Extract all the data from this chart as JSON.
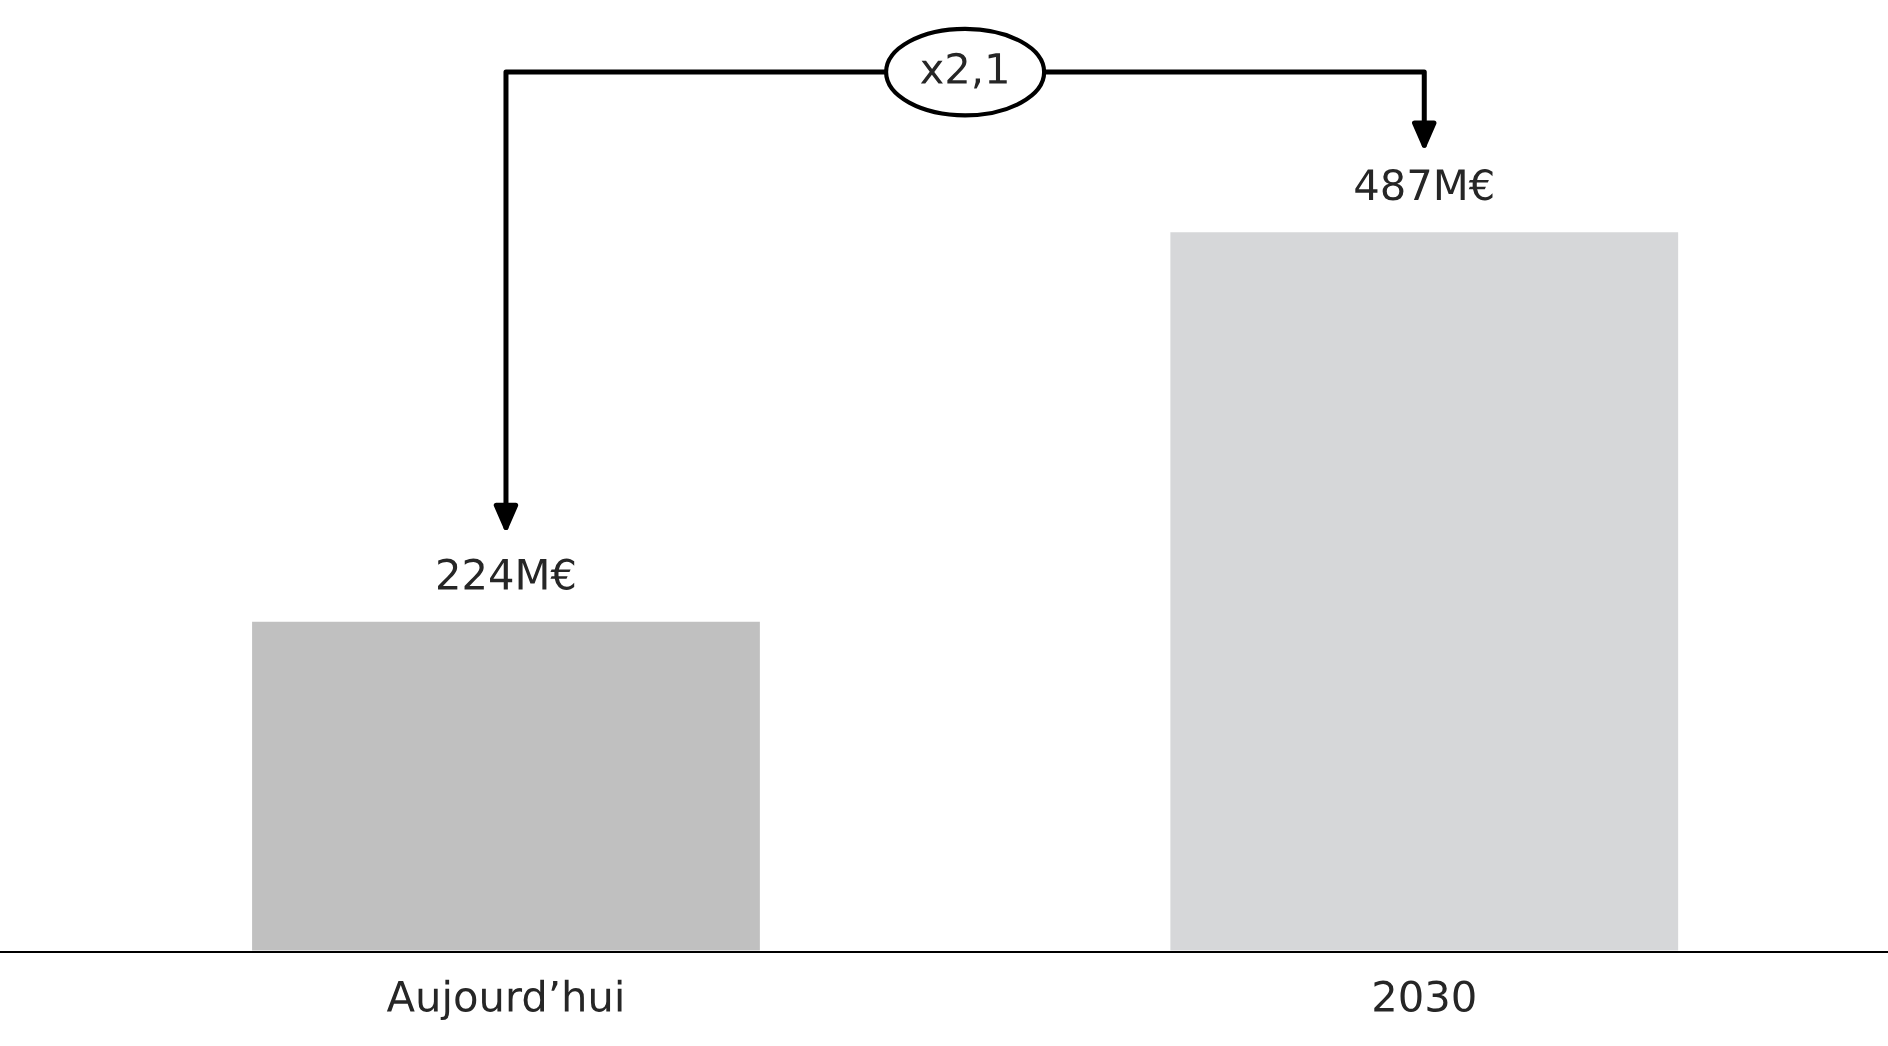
{
  "chart_data": {
    "type": "bar",
    "categories": [
      "Aujourd’hui",
      "2030"
    ],
    "values": [
      224,
      487
    ],
    "colors": [
      "#c0c0c0",
      "#d6d7d9"
    ],
    "value_labels": [
      "224M€",
      "487M€"
    ],
    "annotations": [
      "x2,1"
    ],
    "grid": false,
    "legend": false
  }
}
